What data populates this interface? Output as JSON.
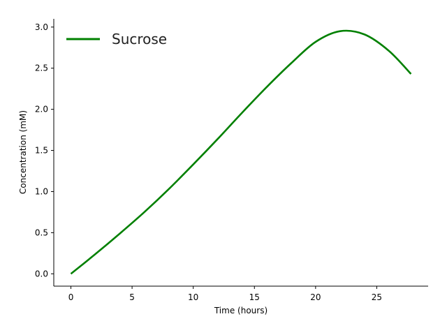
{
  "chart_data": {
    "type": "line",
    "xlabel": "Time (hours)",
    "ylabel": "Concentration (mM)",
    "xlim": [
      -1.4,
      29.2
    ],
    "ylim": [
      -0.15,
      3.1
    ],
    "xticks": [
      0,
      5,
      10,
      15,
      20,
      25
    ],
    "yticks": [
      0.0,
      0.5,
      1.0,
      1.5,
      2.0,
      2.5,
      3.0
    ],
    "xtick_labels": [
      "0",
      "5",
      "10",
      "15",
      "20",
      "25"
    ],
    "ytick_labels": [
      "0.0",
      "0.5",
      "1.0",
      "1.5",
      "2.0",
      "2.5",
      "3.0"
    ],
    "grid": false,
    "legend_position": "top-left",
    "series": [
      {
        "name": "Sucrose",
        "color": "#008000",
        "x": [
          0,
          2,
          4,
          6,
          8,
          10,
          12,
          14,
          16,
          18,
          20,
          22,
          24,
          26,
          27.8
        ],
        "values": [
          0.0,
          0.24,
          0.49,
          0.75,
          1.03,
          1.33,
          1.64,
          1.96,
          2.27,
          2.56,
          2.82,
          2.95,
          2.91,
          2.71,
          2.43
        ]
      }
    ]
  }
}
